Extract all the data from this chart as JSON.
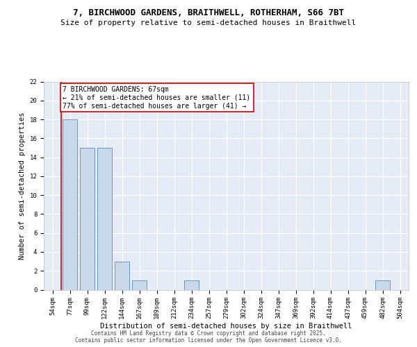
{
  "title_line1": "7, BIRCHWOOD GARDENS, BRAITHWELL, ROTHERHAM, S66 7BT",
  "title_line2": "Size of property relative to semi-detached houses in Braithwell",
  "xlabel": "Distribution of semi-detached houses by size in Braithwell",
  "ylabel": "Number of semi-detached properties",
  "bins": [
    "54sqm",
    "77sqm",
    "99sqm",
    "122sqm",
    "144sqm",
    "167sqm",
    "189sqm",
    "212sqm",
    "234sqm",
    "257sqm",
    "279sqm",
    "302sqm",
    "324sqm",
    "347sqm",
    "369sqm",
    "392sqm",
    "414sqm",
    "437sqm",
    "459sqm",
    "482sqm",
    "504sqm"
  ],
  "values": [
    0,
    18,
    15,
    15,
    3,
    1,
    0,
    0,
    1,
    0,
    0,
    0,
    0,
    0,
    0,
    0,
    0,
    0,
    0,
    1,
    0
  ],
  "bar_color": "#c9d9ea",
  "bar_edge_color": "#6699bb",
  "background_color": "#e6ecf5",
  "grid_color": "#ffffff",
  "property_line_color": "#cc0000",
  "annotation_text": "7 BIRCHWOOD GARDENS: 67sqm\n← 21% of semi-detached houses are smaller (11)\n77% of semi-detached houses are larger (41) →",
  "annotation_box_color": "#ffffff",
  "annotation_box_edge": "#cc0000",
  "ylim": [
    0,
    22
  ],
  "yticks": [
    0,
    2,
    4,
    6,
    8,
    10,
    12,
    14,
    16,
    18,
    20,
    22
  ],
  "footer_text": "Contains HM Land Registry data © Crown copyright and database right 2025.\nContains public sector information licensed under the Open Government Licence v3.0.",
  "title_fontsize": 9,
  "subtitle_fontsize": 8,
  "axis_label_fontsize": 7.5,
  "tick_fontsize": 6.5,
  "annotation_fontsize": 7,
  "footer_fontsize": 5.5
}
